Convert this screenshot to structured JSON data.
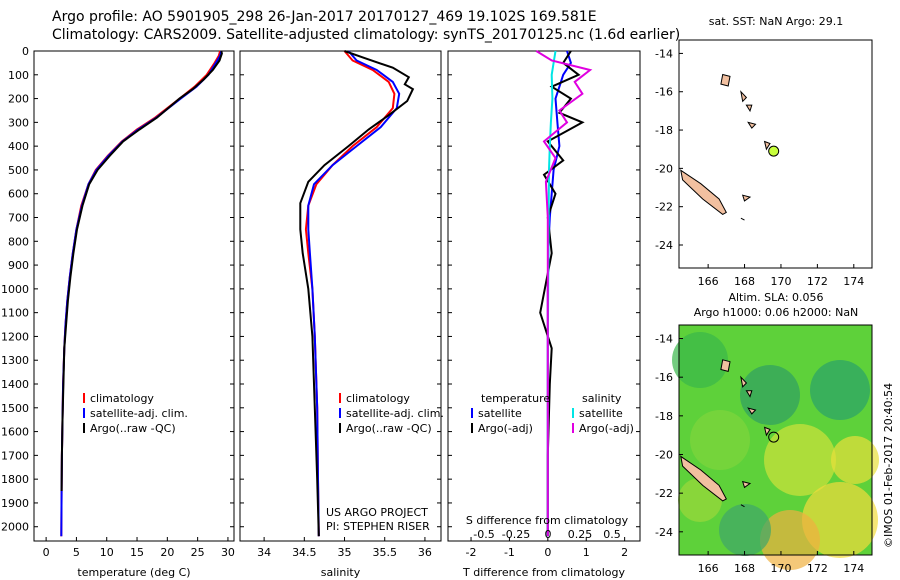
{
  "title": {
    "line1": "Argo profile: AO 5901905_298 26-Jan-2017 20170127_469 19.102S 169.581E",
    "line2": "Climatology: CARS2009. Satellite-adjusted climatology: synTS_20170125.nc (1.6d earlier)"
  },
  "colors": {
    "climatology": "#ff0000",
    "satellite": "#0000ff",
    "argo": "#000000",
    "sal_satellite": "#00e5e5",
    "sal_argo": "#e000e0",
    "land": "#f2c0a0",
    "float_marker": "#c8ff3c"
  },
  "chart_data": [
    {
      "type": "line",
      "xlabel": "temperature (deg C)",
      "ylabel": "",
      "xlim": [
        -2,
        31
      ],
      "ylim": [
        2060,
        0
      ],
      "xticks": [
        0,
        5,
        10,
        15,
        20,
        25,
        30
      ],
      "yticks": [
        0,
        100,
        200,
        300,
        400,
        500,
        600,
        700,
        800,
        900,
        1000,
        1100,
        1200,
        1300,
        1400,
        1500,
        1600,
        1700,
        1800,
        1900,
        2000
      ],
      "legend": [
        "climatology",
        "satellite-adj. clim.",
        "Argo(..raw -QC)"
      ],
      "series": [
        {
          "name": "climatology",
          "color": "#ff0000",
          "x": [
            28.7,
            28.5,
            27.8,
            26.5,
            24.5,
            22.0,
            18.0,
            15.0,
            12.5,
            10.2,
            8.2,
            7.0,
            5.8,
            5.0,
            4.4,
            3.9,
            3.5,
            3.2,
            3.0,
            2.8,
            2.7,
            2.6,
            2.55,
            2.5
          ],
          "y": [
            0,
            20,
            50,
            100,
            150,
            200,
            280,
            330,
            380,
            440,
            500,
            560,
            650,
            750,
            850,
            950,
            1050,
            1150,
            1250,
            1400,
            1550,
            1700,
            1850,
            2040
          ]
        },
        {
          "name": "satellite-adj. clim.",
          "color": "#0000ff",
          "x": [
            28.9,
            28.7,
            28.0,
            26.8,
            24.8,
            22.2,
            18.2,
            15.2,
            12.6,
            10.3,
            8.3,
            7.0,
            5.9,
            5.0,
            4.4,
            3.9,
            3.5,
            3.2,
            3.0,
            2.8,
            2.7,
            2.6,
            2.55,
            2.5
          ],
          "y": [
            0,
            20,
            50,
            100,
            150,
            200,
            280,
            330,
            380,
            440,
            500,
            560,
            650,
            750,
            850,
            950,
            1050,
            1150,
            1250,
            1400,
            1550,
            1700,
            1850,
            2040
          ]
        },
        {
          "name": "Argo(..raw -QC)",
          "color": "#000000",
          "x": [
            28.9,
            29.0,
            28.6,
            27.5,
            26.0,
            24.2,
            22.0,
            18.3,
            15.4,
            12.7,
            10.5,
            8.5,
            7.1,
            6.0,
            5.1,
            4.5,
            4.0,
            3.6,
            3.3,
            3.0,
            2.85,
            2.7,
            2.6,
            2.55
          ],
          "y": [
            0,
            10,
            40,
            80,
            120,
            160,
            200,
            280,
            330,
            380,
            440,
            500,
            560,
            650,
            750,
            850,
            950,
            1050,
            1150,
            1250,
            1400,
            1550,
            1700,
            1850
          ]
        }
      ]
    },
    {
      "type": "line",
      "xlabel": "salinity",
      "xlim": [
        33.7,
        36.2
      ],
      "ylim": [
        2060,
        0
      ],
      "xticks": [
        34,
        34.5,
        35,
        35.5,
        36
      ],
      "legend": [
        "climatology",
        "satellite-adj. clim.",
        "Argo(..raw -QC)"
      ],
      "annotation": [
        "US ARGO PROJECT",
        "PI: STEPHEN RISER"
      ],
      "series": [
        {
          "name": "climatology",
          "color": "#ff0000",
          "x": [
            35.0,
            35.1,
            35.35,
            35.55,
            35.62,
            35.6,
            35.4,
            35.1,
            34.85,
            34.65,
            34.55,
            34.52,
            34.55,
            34.6,
            34.63,
            34.66,
            34.67,
            34.68
          ],
          "y": [
            0,
            40,
            80,
            130,
            180,
            240,
            320,
            400,
            480,
            560,
            650,
            750,
            850,
            1000,
            1200,
            1500,
            1800,
            2040
          ]
        },
        {
          "name": "satellite-adj. clim.",
          "color": "#0000ff",
          "x": [
            35.05,
            35.15,
            35.4,
            35.6,
            35.68,
            35.65,
            35.45,
            35.15,
            34.85,
            34.62,
            34.55,
            34.55,
            34.57,
            34.6,
            34.63,
            34.66,
            34.67,
            34.68
          ],
          "y": [
            0,
            40,
            80,
            130,
            180,
            240,
            320,
            400,
            480,
            560,
            650,
            750,
            850,
            1000,
            1200,
            1500,
            1800,
            2040
          ]
        },
        {
          "name": "Argo(..raw -QC)",
          "color": "#000000",
          "x": [
            35.0,
            35.25,
            35.6,
            35.8,
            35.75,
            35.85,
            35.78,
            35.55,
            35.3,
            35.05,
            34.75,
            34.55,
            34.45,
            34.45,
            34.48,
            34.55,
            34.6,
            34.63,
            34.66,
            34.68
          ],
          "y": [
            0,
            30,
            70,
            110,
            140,
            160,
            210,
            270,
            330,
            400,
            480,
            550,
            640,
            750,
            850,
            1000,
            1200,
            1500,
            1800,
            2040
          ]
        }
      ]
    },
    {
      "type": "line",
      "xlabel": "T difference from climatology",
      "ylabel_top": "S difference from climatology",
      "xlim": [
        -2.6,
        2.4
      ],
      "ylim": [
        2060,
        0
      ],
      "xticks": [
        -2,
        -1,
        0,
        1,
        2
      ],
      "sticks": [
        -0.5,
        -0.25,
        0,
        0.25,
        0.5
      ],
      "legend_temperature": [
        "temperature",
        "satellite",
        "Argo(-adj)"
      ],
      "legend_salinity": [
        "salinity",
        "satellite",
        "Argo(-adj)"
      ],
      "series": [
        {
          "name": "temperature satellite",
          "color": "#0000ff",
          "x": [
            0.5,
            0.6,
            0.4,
            0.3,
            0.2,
            0.25,
            0.3,
            0.15,
            0.1,
            0.05,
            0.02,
            0.0,
            0.0,
            0.0,
            0.0,
            0.0
          ],
          "y": [
            0,
            50,
            100,
            150,
            200,
            300,
            400,
            500,
            600,
            700,
            800,
            1000,
            1200,
            1500,
            1800,
            2040
          ]
        },
        {
          "name": "temperature Argo(-adj)",
          "color": "#000000",
          "x": [
            0.6,
            0.4,
            0.8,
            0.1,
            0.6,
            0.3,
            0.9,
            0.0,
            0.4,
            -0.1,
            0.2,
            0.0,
            0.1,
            -0.2,
            0.1,
            0.05,
            0.0,
            0.0
          ],
          "y": [
            0,
            50,
            100,
            150,
            200,
            260,
            300,
            380,
            460,
            520,
            600,
            700,
            850,
            1100,
            1250,
            1400,
            1700,
            2040
          ]
        },
        {
          "name": "salinity satellite",
          "color": "#00e5e5",
          "x": [
            0.2,
            0.15,
            0.1,
            0.12,
            0.08,
            0.05,
            0.03,
            0.02,
            0.01,
            0.0,
            0.0,
            0.0
          ],
          "y": [
            0,
            50,
            100,
            200,
            300,
            400,
            500,
            700,
            1000,
            1300,
            1600,
            2040
          ]
        },
        {
          "name": "salinity Argo(-adj)",
          "color": "#e000e0",
          "x": [
            -0.3,
            0.1,
            1.1,
            0.7,
            0.9,
            0.3,
            0.5,
            -0.1,
            0.2,
            -0.05,
            0.0,
            0.0,
            0.0
          ],
          "y": [
            0,
            40,
            80,
            130,
            180,
            250,
            300,
            380,
            450,
            550,
            700,
            900,
            2040
          ]
        }
      ]
    }
  ],
  "maps": [
    {
      "title": "sat. SST: NaN Argo: 29.1",
      "xticks": [
        166,
        168,
        170,
        172,
        174
      ],
      "yticks": [
        -14,
        -16,
        -18,
        -20,
        -22,
        -24
      ],
      "float": {
        "lon": 169.6,
        "lat": -19.1
      }
    },
    {
      "title_line1": "Altim. SLA: 0.056",
      "title_line2": "Argo h1000: 0.06 h2000: NaN",
      "xticks": [
        166,
        168,
        170,
        172,
        174
      ],
      "yticks": [
        -14,
        -16,
        -18,
        -20,
        -22,
        -24
      ],
      "float": {
        "lon": 169.6,
        "lat": -19.1
      }
    }
  ],
  "stamp": "©IMOS 01-Feb-2017 20:40:54"
}
